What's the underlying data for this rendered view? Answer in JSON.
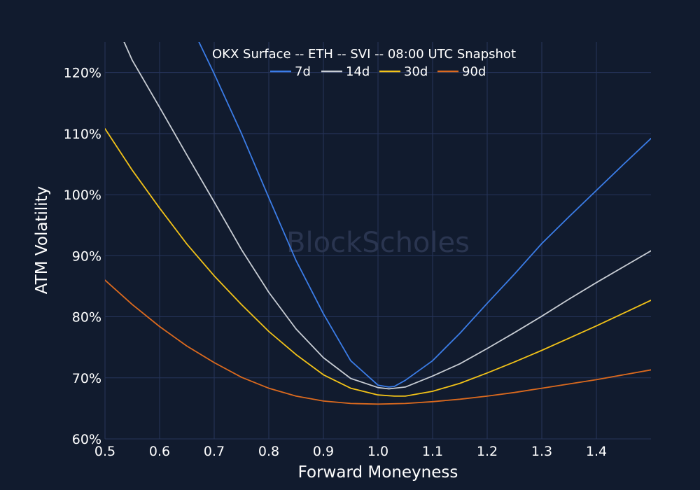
{
  "chart_data": {
    "type": "line",
    "title": "OKX Surface -- ETH -- SVI -- 08:00 UTC Snapshot",
    "xlabel": "Forward Moneyness",
    "ylabel": "ATM Volatility",
    "xlim": [
      0.5,
      1.5
    ],
    "ylim": [
      60,
      125
    ],
    "x_ticks": [
      0.5,
      0.6,
      0.7,
      0.8,
      0.9,
      1.0,
      1.1,
      1.2,
      1.3,
      1.4
    ],
    "x_tick_labels": [
      "0.5",
      "0.6",
      "0.7",
      "0.8",
      "0.9",
      "1.0",
      "1.1",
      "1.2",
      "1.3",
      "1.4"
    ],
    "y_ticks": [
      60,
      70,
      80,
      90,
      100,
      110,
      120
    ],
    "y_tick_labels": [
      "60%",
      "70%",
      "80%",
      "90%",
      "100%",
      "110%",
      "120%"
    ],
    "grid": true,
    "legend_position": "top-center",
    "watermark": "BlockScholes",
    "series": [
      {
        "name": "7d",
        "color": "#3b7de8",
        "x": [
          0.672,
          0.7,
          0.75,
          0.8,
          0.85,
          0.9,
          0.95,
          1.0,
          1.02,
          1.03,
          1.05,
          1.1,
          1.15,
          1.2,
          1.25,
          1.3,
          1.35,
          1.4,
          1.45,
          1.5
        ],
        "y": [
          125.0,
          119.8,
          110.0,
          99.5,
          89.2,
          80.5,
          72.8,
          68.8,
          68.5,
          68.6,
          69.6,
          72.8,
          77.3,
          82.2,
          87.0,
          92.0,
          96.4,
          100.7,
          105.0,
          109.2
        ]
      },
      {
        "name": "14d",
        "color": "#c8cdd4",
        "x": [
          0.535,
          0.55,
          0.6,
          0.65,
          0.7,
          0.75,
          0.8,
          0.85,
          0.9,
          0.95,
          1.0,
          1.02,
          1.03,
          1.05,
          1.1,
          1.15,
          1.2,
          1.25,
          1.3,
          1.35,
          1.4,
          1.45,
          1.5
        ],
        "y": [
          125.0,
          122.0,
          114.3,
          106.5,
          98.8,
          91.0,
          84.0,
          78.0,
          73.3,
          69.9,
          68.4,
          68.2,
          68.3,
          68.5,
          70.3,
          72.3,
          74.8,
          77.4,
          80.1,
          82.9,
          85.6,
          88.2,
          90.8
        ]
      },
      {
        "name": "30d",
        "color": "#f3c318",
        "x": [
          0.5,
          0.55,
          0.6,
          0.65,
          0.7,
          0.75,
          0.8,
          0.85,
          0.9,
          0.95,
          1.0,
          1.03,
          1.05,
          1.1,
          1.15,
          1.2,
          1.25,
          1.3,
          1.35,
          1.4,
          1.45,
          1.5
        ],
        "y": [
          110.8,
          104.0,
          97.8,
          91.9,
          86.7,
          82.0,
          77.6,
          73.8,
          70.5,
          68.3,
          67.2,
          67.0,
          67.0,
          67.8,
          69.1,
          70.8,
          72.6,
          74.5,
          76.5,
          78.5,
          80.6,
          82.7
        ]
      },
      {
        "name": "90d",
        "color": "#dc6a1e",
        "x": [
          0.5,
          0.55,
          0.6,
          0.65,
          0.7,
          0.75,
          0.8,
          0.85,
          0.9,
          0.95,
          1.0,
          1.05,
          1.1,
          1.15,
          1.2,
          1.25,
          1.3,
          1.35,
          1.4,
          1.45,
          1.5
        ],
        "y": [
          86.0,
          82.0,
          78.4,
          75.2,
          72.5,
          70.1,
          68.3,
          67.0,
          66.2,
          65.8,
          65.7,
          65.8,
          66.1,
          66.5,
          67.0,
          67.6,
          68.3,
          69.0,
          69.7,
          70.5,
          71.3
        ]
      }
    ]
  }
}
